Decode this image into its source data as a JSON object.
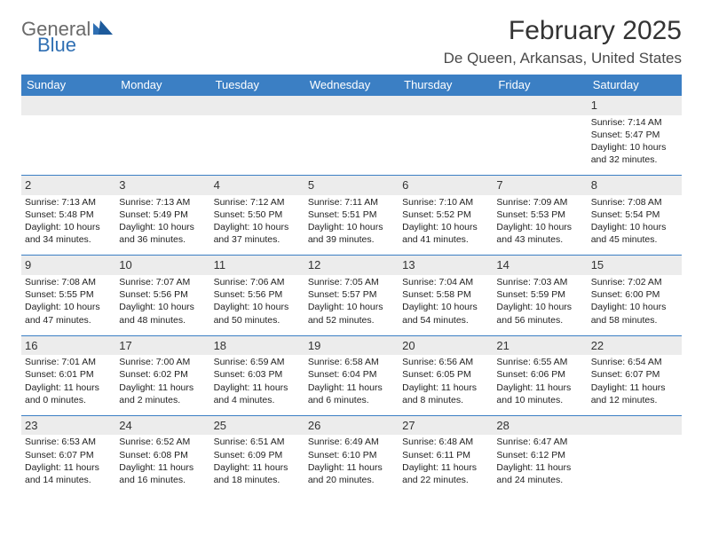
{
  "brand": {
    "word1": "General",
    "word2": "Blue"
  },
  "title": "February 2025",
  "subtitle": "De Queen, Arkansas, United States",
  "colors": {
    "header_bg": "#3b7fc4",
    "header_fg": "#ffffff",
    "band_bg": "#ececec",
    "rule": "#3b7fc4",
    "text": "#222222",
    "logo_gray": "#6a6a6a",
    "logo_blue": "#2f6fb3"
  },
  "dayHeaders": [
    "Sunday",
    "Monday",
    "Tuesday",
    "Wednesday",
    "Thursday",
    "Friday",
    "Saturday"
  ],
  "weeks": [
    [
      {
        "n": "",
        "d": ""
      },
      {
        "n": "",
        "d": ""
      },
      {
        "n": "",
        "d": ""
      },
      {
        "n": "",
        "d": ""
      },
      {
        "n": "",
        "d": ""
      },
      {
        "n": "",
        "d": ""
      },
      {
        "n": "1",
        "d": "Sunrise: 7:14 AM\nSunset: 5:47 PM\nDaylight: 10 hours and 32 minutes."
      }
    ],
    [
      {
        "n": "2",
        "d": "Sunrise: 7:13 AM\nSunset: 5:48 PM\nDaylight: 10 hours and 34 minutes."
      },
      {
        "n": "3",
        "d": "Sunrise: 7:13 AM\nSunset: 5:49 PM\nDaylight: 10 hours and 36 minutes."
      },
      {
        "n": "4",
        "d": "Sunrise: 7:12 AM\nSunset: 5:50 PM\nDaylight: 10 hours and 37 minutes."
      },
      {
        "n": "5",
        "d": "Sunrise: 7:11 AM\nSunset: 5:51 PM\nDaylight: 10 hours and 39 minutes."
      },
      {
        "n": "6",
        "d": "Sunrise: 7:10 AM\nSunset: 5:52 PM\nDaylight: 10 hours and 41 minutes."
      },
      {
        "n": "7",
        "d": "Sunrise: 7:09 AM\nSunset: 5:53 PM\nDaylight: 10 hours and 43 minutes."
      },
      {
        "n": "8",
        "d": "Sunrise: 7:08 AM\nSunset: 5:54 PM\nDaylight: 10 hours and 45 minutes."
      }
    ],
    [
      {
        "n": "9",
        "d": "Sunrise: 7:08 AM\nSunset: 5:55 PM\nDaylight: 10 hours and 47 minutes."
      },
      {
        "n": "10",
        "d": "Sunrise: 7:07 AM\nSunset: 5:56 PM\nDaylight: 10 hours and 48 minutes."
      },
      {
        "n": "11",
        "d": "Sunrise: 7:06 AM\nSunset: 5:56 PM\nDaylight: 10 hours and 50 minutes."
      },
      {
        "n": "12",
        "d": "Sunrise: 7:05 AM\nSunset: 5:57 PM\nDaylight: 10 hours and 52 minutes."
      },
      {
        "n": "13",
        "d": "Sunrise: 7:04 AM\nSunset: 5:58 PM\nDaylight: 10 hours and 54 minutes."
      },
      {
        "n": "14",
        "d": "Sunrise: 7:03 AM\nSunset: 5:59 PM\nDaylight: 10 hours and 56 minutes."
      },
      {
        "n": "15",
        "d": "Sunrise: 7:02 AM\nSunset: 6:00 PM\nDaylight: 10 hours and 58 minutes."
      }
    ],
    [
      {
        "n": "16",
        "d": "Sunrise: 7:01 AM\nSunset: 6:01 PM\nDaylight: 11 hours and 0 minutes."
      },
      {
        "n": "17",
        "d": "Sunrise: 7:00 AM\nSunset: 6:02 PM\nDaylight: 11 hours and 2 minutes."
      },
      {
        "n": "18",
        "d": "Sunrise: 6:59 AM\nSunset: 6:03 PM\nDaylight: 11 hours and 4 minutes."
      },
      {
        "n": "19",
        "d": "Sunrise: 6:58 AM\nSunset: 6:04 PM\nDaylight: 11 hours and 6 minutes."
      },
      {
        "n": "20",
        "d": "Sunrise: 6:56 AM\nSunset: 6:05 PM\nDaylight: 11 hours and 8 minutes."
      },
      {
        "n": "21",
        "d": "Sunrise: 6:55 AM\nSunset: 6:06 PM\nDaylight: 11 hours and 10 minutes."
      },
      {
        "n": "22",
        "d": "Sunrise: 6:54 AM\nSunset: 6:07 PM\nDaylight: 11 hours and 12 minutes."
      }
    ],
    [
      {
        "n": "23",
        "d": "Sunrise: 6:53 AM\nSunset: 6:07 PM\nDaylight: 11 hours and 14 minutes."
      },
      {
        "n": "24",
        "d": "Sunrise: 6:52 AM\nSunset: 6:08 PM\nDaylight: 11 hours and 16 minutes."
      },
      {
        "n": "25",
        "d": "Sunrise: 6:51 AM\nSunset: 6:09 PM\nDaylight: 11 hours and 18 minutes."
      },
      {
        "n": "26",
        "d": "Sunrise: 6:49 AM\nSunset: 6:10 PM\nDaylight: 11 hours and 20 minutes."
      },
      {
        "n": "27",
        "d": "Sunrise: 6:48 AM\nSunset: 6:11 PM\nDaylight: 11 hours and 22 minutes."
      },
      {
        "n": "28",
        "d": "Sunrise: 6:47 AM\nSunset: 6:12 PM\nDaylight: 11 hours and 24 minutes."
      },
      {
        "n": "",
        "d": ""
      }
    ]
  ]
}
